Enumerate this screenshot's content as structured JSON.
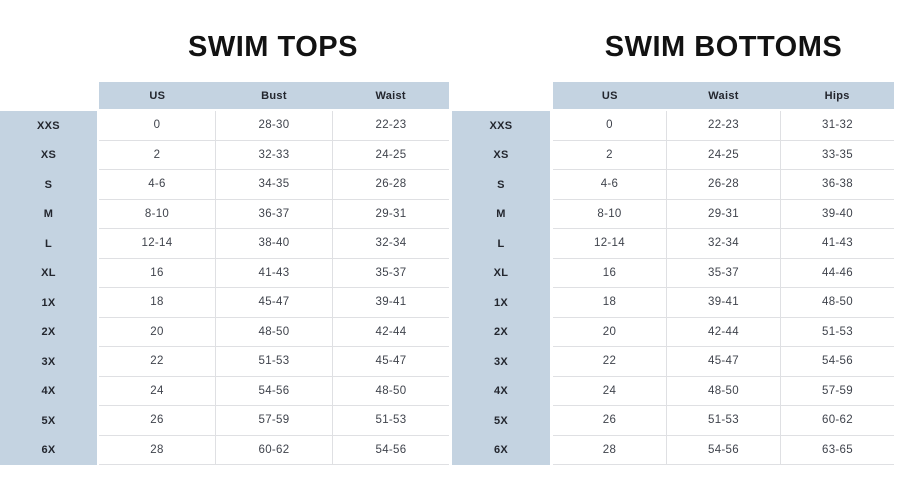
{
  "colors": {
    "fill_blue": "#c4d3e1",
    "grid_line": "#dfe0e3",
    "title_color": "#121212",
    "label_color": "#23262e",
    "value_color": "#3f434c",
    "bg": "#ffffff"
  },
  "chart_data": [
    {
      "type": "table",
      "title": "SWIM TOPS",
      "columns": [
        "US",
        "Bust",
        "Waist"
      ],
      "row_header_label": "size",
      "rows": [
        {
          "size": "XXS",
          "values": [
            "0",
            "28-30",
            "22-23"
          ]
        },
        {
          "size": "XS",
          "values": [
            "2",
            "32-33",
            "24-25"
          ]
        },
        {
          "size": "S",
          "values": [
            "4-6",
            "34-35",
            "26-28"
          ]
        },
        {
          "size": "M",
          "values": [
            "8-10",
            "36-37",
            "29-31"
          ]
        },
        {
          "size": "L",
          "values": [
            "12-14",
            "38-40",
            "32-34"
          ]
        },
        {
          "size": "XL",
          "values": [
            "16",
            "41-43",
            "35-37"
          ]
        },
        {
          "size": "1X",
          "values": [
            "18",
            "45-47",
            "39-41"
          ]
        },
        {
          "size": "2X",
          "values": [
            "20",
            "48-50",
            "42-44"
          ]
        },
        {
          "size": "3X",
          "values": [
            "22",
            "51-53",
            "45-47"
          ]
        },
        {
          "size": "4X",
          "values": [
            "24",
            "54-56",
            "48-50"
          ]
        },
        {
          "size": "5X",
          "values": [
            "26",
            "57-59",
            "51-53"
          ]
        },
        {
          "size": "6X",
          "values": [
            "28",
            "60-62",
            "54-56"
          ]
        }
      ]
    },
    {
      "type": "table",
      "title": "SWIM BOTTOMS",
      "columns": [
        "US",
        "Waist",
        "Hips"
      ],
      "row_header_label": "size",
      "rows": [
        {
          "size": "XXS",
          "values": [
            "0",
            "22-23",
            "31-32"
          ]
        },
        {
          "size": "XS",
          "values": [
            "2",
            "24-25",
            "33-35"
          ]
        },
        {
          "size": "S",
          "values": [
            "4-6",
            "26-28",
            "36-38"
          ]
        },
        {
          "size": "M",
          "values": [
            "8-10",
            "29-31",
            "39-40"
          ]
        },
        {
          "size": "L",
          "values": [
            "12-14",
            "32-34",
            "41-43"
          ]
        },
        {
          "size": "XL",
          "values": [
            "16",
            "35-37",
            "44-46"
          ]
        },
        {
          "size": "1X",
          "values": [
            "18",
            "39-41",
            "48-50"
          ]
        },
        {
          "size": "2X",
          "values": [
            "20",
            "42-44",
            "51-53"
          ]
        },
        {
          "size": "3X",
          "values": [
            "22",
            "45-47",
            "54-56"
          ]
        },
        {
          "size": "4X",
          "values": [
            "24",
            "48-50",
            "57-59"
          ]
        },
        {
          "size": "5X",
          "values": [
            "26",
            "51-53",
            "60-62"
          ]
        },
        {
          "size": "6X",
          "values": [
            "28",
            "54-56",
            "63-65"
          ]
        }
      ]
    }
  ]
}
